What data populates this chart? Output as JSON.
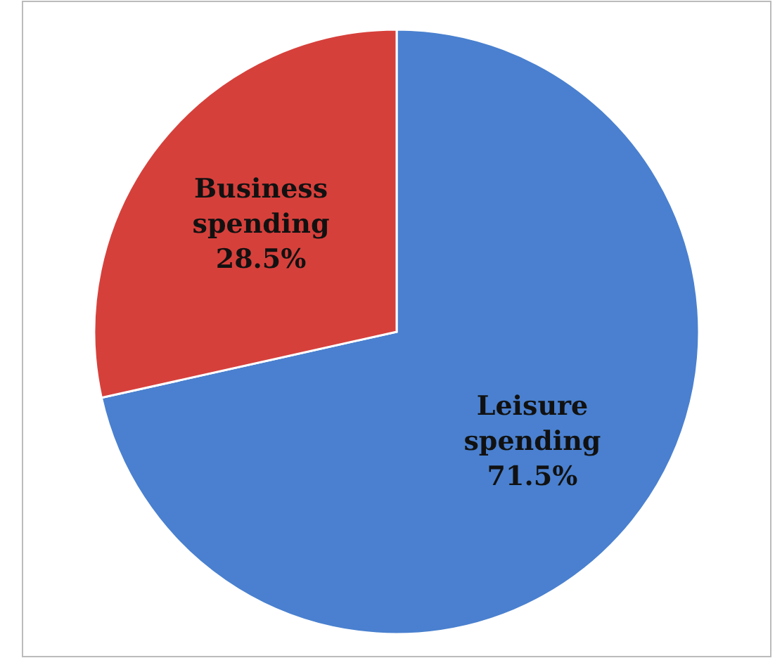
{
  "chart_data": {
    "type": "pie",
    "categories": [
      "Leisure spending",
      "Business spending"
    ],
    "values": [
      71.5,
      28.5
    ],
    "value_labels": [
      "71.5%",
      "28.5%"
    ],
    "colors": [
      "#4a80cf",
      "#d6403b"
    ]
  }
}
